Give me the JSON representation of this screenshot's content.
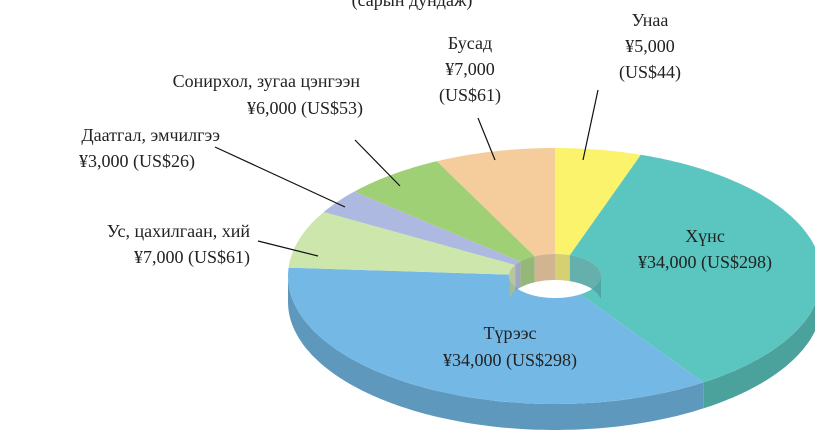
{
  "chart_data": {
    "type": "donut3d",
    "title": "(сарын дундаж)",
    "categories": [
      "Унаа",
      "Хүнс",
      "Түрээс",
      "Ус, цахилгаан, хий",
      "Даатгал, эмчилгээ",
      "Сонирхол, зугаа цэнгээн",
      "Бусад"
    ],
    "values": [
      5000,
      34000,
      34000,
      7000,
      3000,
      6000,
      7000
    ],
    "value_labels": [
      "¥5,000 (US$44)",
      "¥34,000 (US$298)",
      "¥34,000 (US$298)",
      "¥7,000 (US$61)",
      "¥3,000 (US$26)",
      "¥6,000 (US$53)",
      "¥7,000 (US$61)"
    ],
    "colors": [
      "#fbf36b",
      "#5bc5bf",
      "#74b9e6",
      "#cde6ab",
      "#adb9e0",
      "#9fd075",
      "#f5cd9c"
    ]
  }
}
